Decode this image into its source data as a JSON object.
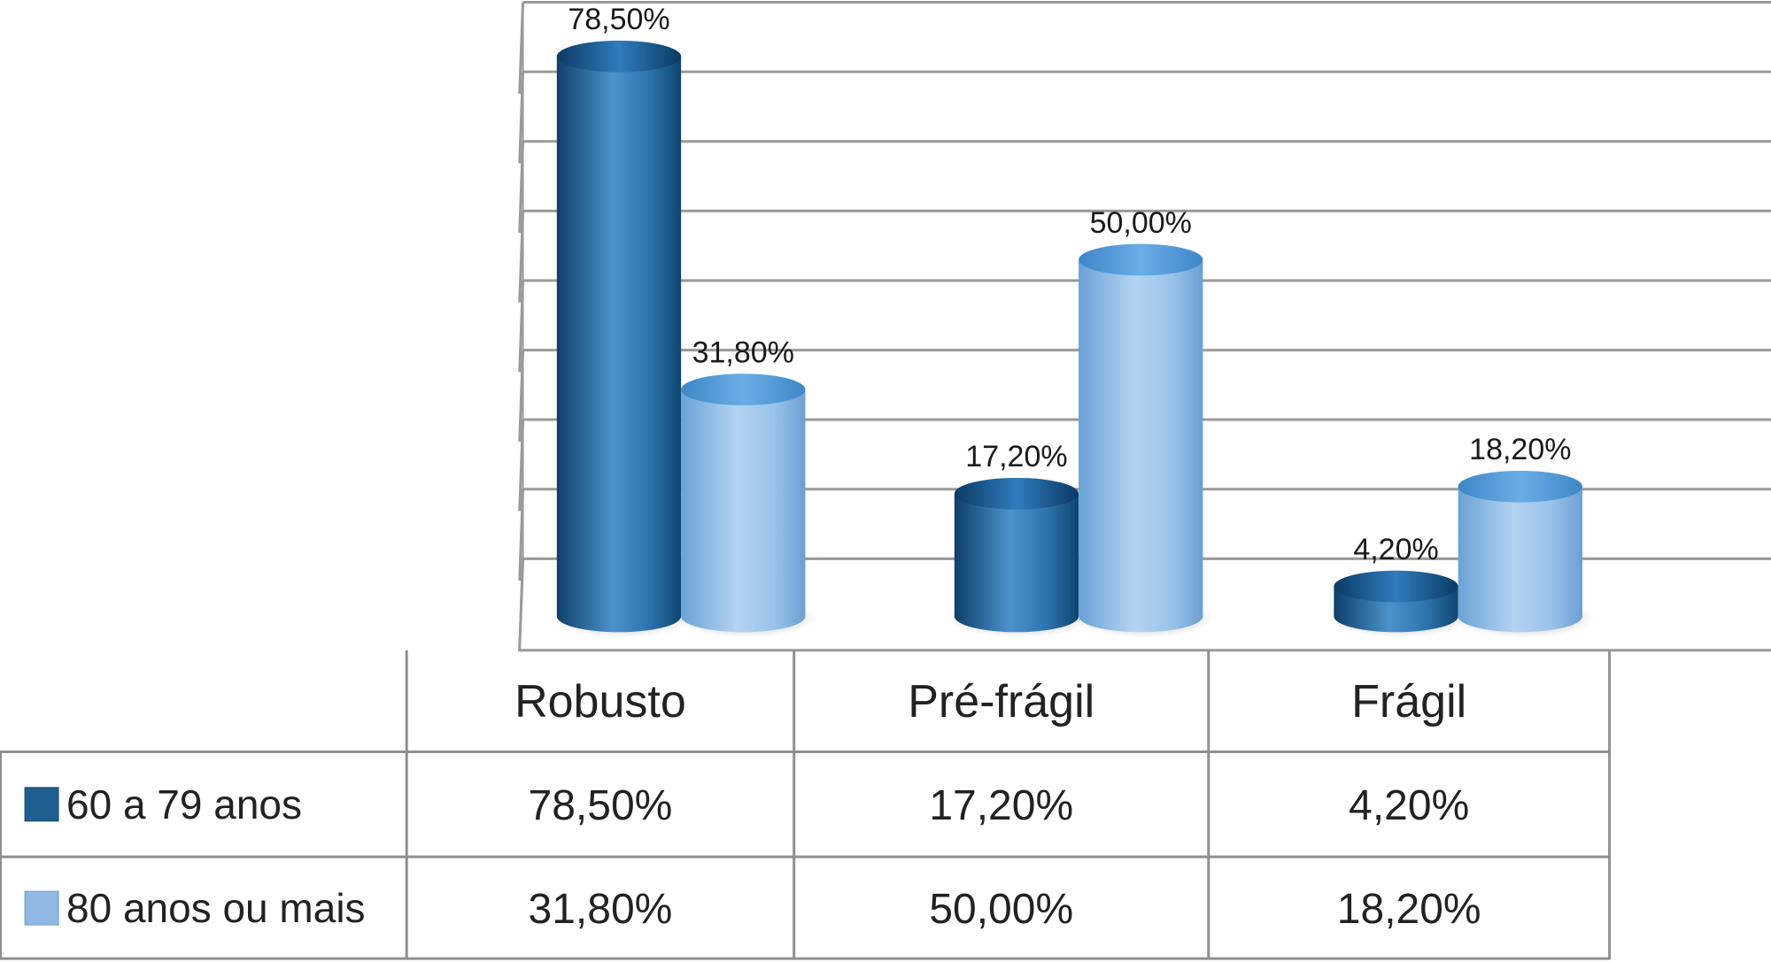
{
  "chart_data": {
    "type": "bar",
    "categories": [
      "Robusto",
      "Pré-frágil",
      "Frágil"
    ],
    "series": [
      {
        "name": "60 a 79 anos",
        "values": [
          78.5,
          17.2,
          4.2
        ],
        "labels": [
          "78,50%",
          "17,20%",
          "4,20%"
        ]
      },
      {
        "name": "80 anos ou mais",
        "values": [
          31.8,
          50.0,
          18.2
        ],
        "labels": [
          "31,80%",
          "50,00%",
          "18,20%"
        ]
      }
    ],
    "title": "",
    "xlabel": "",
    "ylabel": "",
    "ylim": [
      0,
      80
    ],
    "grid": true,
    "legend": "data-table-left",
    "colors": {
      "series_dark": "#1d6aa5",
      "series_light": "#8fbde8",
      "grid": "#9a9a9a"
    }
  }
}
